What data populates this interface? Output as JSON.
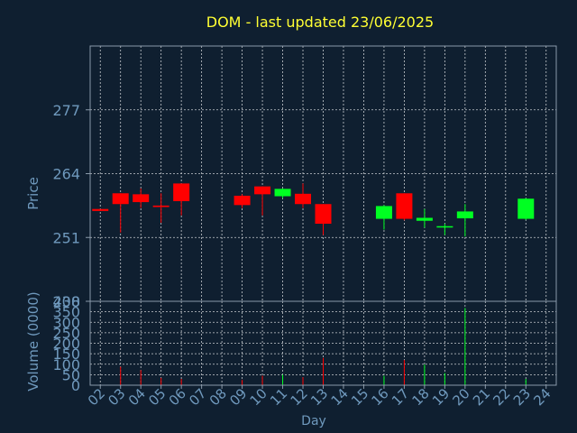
{
  "chart_data": {
    "type": "candlestick",
    "title": "DOM - last updated 23/06/2025",
    "xlabel": "Day",
    "x_ticks": [
      "02",
      "03",
      "04",
      "05",
      "06",
      "07",
      "08",
      "09",
      "10",
      "11",
      "12",
      "13",
      "14",
      "15",
      "16",
      "17",
      "18",
      "19",
      "20",
      "21",
      "22",
      "23",
      "24"
    ],
    "price": {
      "ylabel": "Price",
      "ylim": [
        238,
        290
      ],
      "yticks": [
        238,
        251,
        264,
        277
      ],
      "candles": [
        {
          "day": "02",
          "open": 256.8,
          "close": 256.4,
          "high": 256.8,
          "low": 256.4
        },
        {
          "day": "03",
          "open": 260.0,
          "close": 257.8,
          "high": 260.0,
          "low": 252.0
        },
        {
          "day": "04",
          "open": 259.8,
          "close": 258.2,
          "high": 261.0,
          "low": 257.0
        },
        {
          "day": "05",
          "open": 257.5,
          "close": 257.2,
          "high": 260.0,
          "low": 254.0
        },
        {
          "day": "06",
          "open": 262.0,
          "close": 258.4,
          "high": 262.0,
          "low": 255.5
        },
        {
          "day": "09",
          "open": 259.5,
          "close": 257.6,
          "high": 259.8,
          "low": 257.0
        },
        {
          "day": "10",
          "open": 261.4,
          "close": 259.8,
          "high": 261.4,
          "low": 255.5
        },
        {
          "day": "11",
          "open": 259.4,
          "close": 260.9,
          "high": 261.0,
          "low": 259.0
        },
        {
          "day": "12",
          "open": 259.9,
          "close": 257.8,
          "high": 262.0,
          "low": 257.0
        },
        {
          "day": "13",
          "open": 257.8,
          "close": 253.8,
          "high": 257.8,
          "low": 251.5
        },
        {
          "day": "16",
          "open": 254.8,
          "close": 257.4,
          "high": 257.6,
          "low": 252.6
        },
        {
          "day": "17",
          "open": 260.0,
          "close": 254.8,
          "high": 260.0,
          "low": 254.5
        },
        {
          "day": "18",
          "open": 254.4,
          "close": 255.0,
          "high": 256.8,
          "low": 253.0
        },
        {
          "day": "19",
          "open": 253.1,
          "close": 253.3,
          "high": 253.8,
          "low": 251.5
        },
        {
          "day": "20",
          "open": 254.9,
          "close": 256.3,
          "high": 257.8,
          "low": 251.2
        },
        {
          "day": "23",
          "open": 254.8,
          "close": 258.9,
          "high": 259.0,
          "low": 254.6
        }
      ]
    },
    "volume": {
      "ylabel": "Volume (0000)",
      "ylim": [
        0,
        400
      ],
      "yticks": [
        0,
        50,
        100,
        150,
        200,
        250,
        300,
        350,
        400
      ],
      "bars": [
        {
          "day": "03",
          "value": 88,
          "up": false
        },
        {
          "day": "04",
          "value": 72,
          "up": false
        },
        {
          "day": "05",
          "value": 35,
          "up": false
        },
        {
          "day": "06",
          "value": 30,
          "up": false
        },
        {
          "day": "09",
          "value": 25,
          "up": false
        },
        {
          "day": "10",
          "value": 45,
          "up": false
        },
        {
          "day": "11",
          "value": 50,
          "up": true
        },
        {
          "day": "12",
          "value": 38,
          "up": false
        },
        {
          "day": "13",
          "value": 130,
          "up": false
        },
        {
          "day": "16",
          "value": 45,
          "up": true
        },
        {
          "day": "17",
          "value": 120,
          "up": false
        },
        {
          "day": "18",
          "value": 98,
          "up": true
        },
        {
          "day": "19",
          "value": 58,
          "up": true
        },
        {
          "day": "20",
          "value": 368,
          "up": true
        },
        {
          "day": "23",
          "value": 30,
          "up": true
        }
      ]
    },
    "grid": true,
    "colors": {
      "background": "#0f1f30",
      "plot_border": "#8a9aaa",
      "grid": "#c8ccd0",
      "title": "#ffff33",
      "axis_text": "#6f99bd",
      "up": "#00ff22",
      "down": "#ff0000"
    }
  }
}
